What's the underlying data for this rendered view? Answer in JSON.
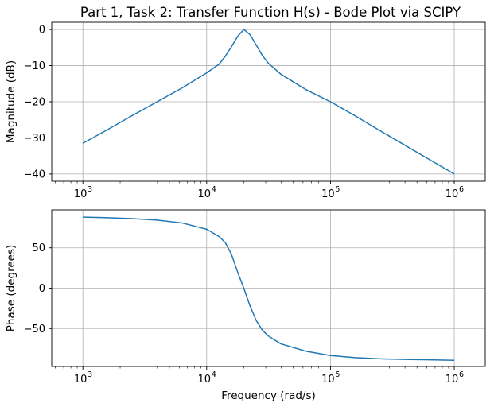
{
  "chart_data": [
    {
      "type": "line",
      "title": "Part 1, Task 2: Transfer Function H(s) - Bode Plot via SCIPY",
      "xlabel": "",
      "ylabel": "Magnitude (dB)",
      "xscale": "log",
      "xlim": [
        560,
        1780000
      ],
      "ylim": [
        -42,
        2
      ],
      "xticks": [
        {
          "base": "10",
          "exp": "3",
          "value": 1000
        },
        {
          "base": "10",
          "exp": "4",
          "value": 10000
        },
        {
          "base": "10",
          "exp": "5",
          "value": 100000
        },
        {
          "base": "10",
          "exp": "6",
          "value": 1000000
        }
      ],
      "yticks": [
        {
          "label": "0",
          "value": 0
        },
        {
          "label": "−10",
          "value": -10
        },
        {
          "label": "−20",
          "value": -20
        },
        {
          "label": "−30",
          "value": -30
        },
        {
          "label": "−40",
          "value": -40
        }
      ],
      "grid": true,
      "series": [
        {
          "color": "#1f77b4",
          "points": [
            [
              1000,
              -31.5
            ],
            [
              1585,
              -27.7
            ],
            [
              2512,
              -23.8
            ],
            [
              3981,
              -20.0
            ],
            [
              6310,
              -16.2
            ],
            [
              10000,
              -12.0
            ],
            [
              12590,
              -9.6
            ],
            [
              14130,
              -7.4
            ],
            [
              15850,
              -4.8
            ],
            [
              17780,
              -1.9
            ],
            [
              19950,
              0.0
            ],
            [
              22390,
              -1.4
            ],
            [
              25120,
              -4.3
            ],
            [
              28180,
              -7.2
            ],
            [
              31620,
              -9.4
            ],
            [
              39810,
              -12.4
            ],
            [
              63100,
              -16.6
            ],
            [
              100000,
              -20.0
            ],
            [
              158500,
              -23.9
            ],
            [
              251200,
              -28.0
            ],
            [
              398100,
              -32.0
            ],
            [
              631000,
              -36.0
            ],
            [
              1000000,
              -40.0
            ]
          ]
        }
      ]
    },
    {
      "type": "line",
      "title": "",
      "xlabel": "Frequency (rad/s)",
      "ylabel": "Phase (degrees)",
      "xscale": "log",
      "xlim": [
        560,
        1780000
      ],
      "ylim": [
        -97,
        97
      ],
      "xticks": [
        {
          "base": "10",
          "exp": "3",
          "value": 1000
        },
        {
          "base": "10",
          "exp": "4",
          "value": 10000
        },
        {
          "base": "10",
          "exp": "5",
          "value": 100000
        },
        {
          "base": "10",
          "exp": "6",
          "value": 1000000
        }
      ],
      "yticks": [
        {
          "label": "50",
          "value": 50
        },
        {
          "label": "0",
          "value": 0
        },
        {
          "label": "−50",
          "value": -50
        }
      ],
      "grid": true,
      "series": [
        {
          "color": "#1f77b4",
          "points": [
            [
              1000,
              88.0
            ],
            [
              1585,
              87.3
            ],
            [
              2512,
              86.2
            ],
            [
              3981,
              84.3
            ],
            [
              6310,
              80.8
            ],
            [
              10000,
              73.0
            ],
            [
              12590,
              64.0
            ],
            [
              14130,
              56.5
            ],
            [
              15850,
              42.0
            ],
            [
              17780,
              20.0
            ],
            [
              19950,
              0.0
            ],
            [
              22390,
              -22.0
            ],
            [
              25120,
              -40.0
            ],
            [
              28180,
              -52.0
            ],
            [
              31620,
              -59.5
            ],
            [
              39810,
              -69.0
            ],
            [
              63100,
              -78.0
            ],
            [
              100000,
              -83.5
            ],
            [
              158500,
              -86.0
            ],
            [
              251200,
              -87.5
            ],
            [
              398100,
              -88.3
            ],
            [
              631000,
              -88.8
            ],
            [
              1000000,
              -89.4
            ]
          ]
        }
      ]
    }
  ]
}
